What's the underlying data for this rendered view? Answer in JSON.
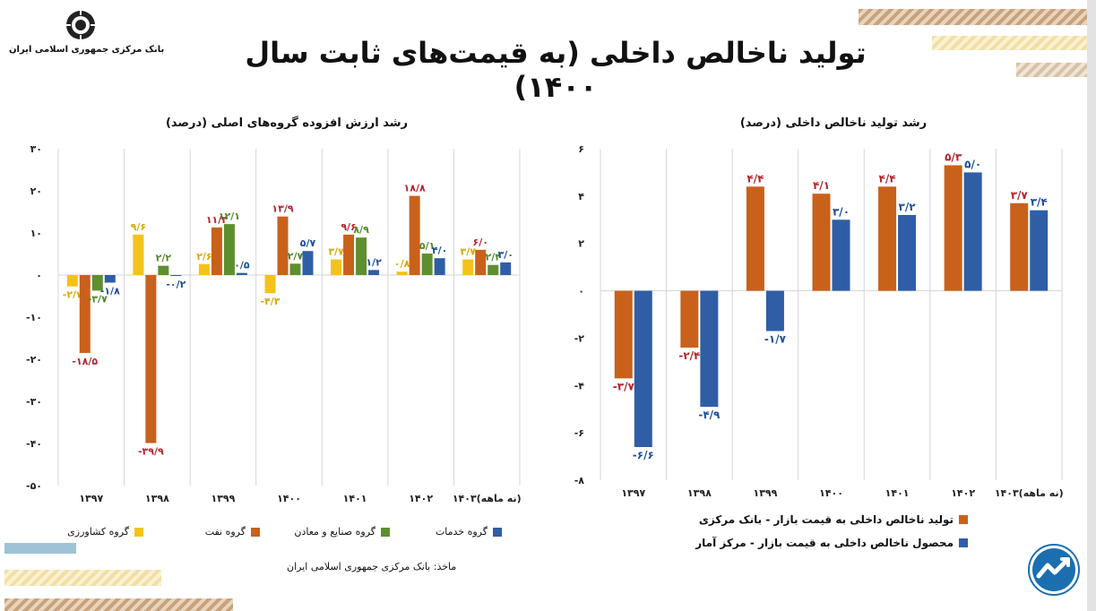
{
  "header": {
    "title": "تولید ناخالص داخلی (به قیمت‌های ثابت سال ۱۴۰۰)",
    "logo_text": "بانک مرکزی جمهوری اسلامی ایران"
  },
  "colors": {
    "yellow": "#F5C21B",
    "orange": "#C9611B",
    "green": "#5E8F2E",
    "blue": "#2F5EA6",
    "label_yellow": "#D8A800",
    "label_red": "#B3262E",
    "label_green": "#4F8A2A",
    "label_blue": "#1F4E9A",
    "grid": "#D5D5D5"
  },
  "chart_data": [
    {
      "type": "bar",
      "title": "رشد ارزش افزوده گروه‌های اصلی (درصد)",
      "categories": [
        "۱۳۹۷",
        "۱۳۹۸",
        "۱۳۹۹",
        "۱۴۰۰",
        "۱۴۰۱",
        "۱۴۰۲",
        "۱۴۰۳(نه ماهه)"
      ],
      "series": [
        {
          "name": "گروه کشاورزی",
          "color": "#F5C21B",
          "label_color": "#D8A800",
          "values": [
            -2.7,
            9.6,
            2.6,
            -4.3,
            3.7,
            0.8,
            3.7
          ],
          "labels": [
            "-۲/۷",
            "۹/۶",
            "۲/۶",
            "-۴/۳",
            "۳/۷",
            "۰/۸",
            "۳/۷"
          ]
        },
        {
          "name": "گروه نفت",
          "color": "#C9611B",
          "label_color": "#B3262E",
          "values": [
            -18.5,
            -39.9,
            11.3,
            13.9,
            9.6,
            18.8,
            6.0
          ],
          "labels": [
            "-۱۸/۵",
            "-۳۹/۹",
            "۱۱/۳",
            "۱۳/۹",
            "۹/۶",
            "۱۸/۸",
            "۶/۰"
          ]
        },
        {
          "name": "گروه صنایع و معادن",
          "color": "#5E8F2E",
          "label_color": "#4F8A2A",
          "values": [
            -3.7,
            2.2,
            12.1,
            2.7,
            8.9,
            5.1,
            2.4
          ],
          "labels": [
            "-۳/۷",
            "۲/۲",
            "۱۲/۱",
            "۲/۷",
            "۸/۹",
            "۵/۱",
            "۲/۴"
          ]
        },
        {
          "name": "گروه خدمات",
          "color": "#2F5EA6",
          "label_color": "#1F4E9A",
          "values": [
            -1.8,
            -0.2,
            0.5,
            5.7,
            1.2,
            4.0,
            3.0
          ],
          "labels": [
            "-۱/۸",
            "-۰/۲",
            "۰/۵",
            "۵/۷",
            "۱/۲",
            "۴/۰",
            "۳/۰"
          ]
        }
      ],
      "ylim": [
        -50,
        30
      ],
      "yticks": [
        30,
        20,
        10,
        0,
        -10,
        -20,
        -30,
        -40,
        -50
      ],
      "ytick_labels": [
        "۳۰",
        "۲۰",
        "۱۰",
        "۰",
        "-۱۰",
        "-۲۰",
        "-۳۰",
        "-۴۰",
        "-۵۰"
      ],
      "source": "ماخذ: بانک مرکزی جمهوری اسلامی ایران"
    },
    {
      "type": "bar",
      "title": "رشد تولید ناخالص داخلی (درصد)",
      "categories": [
        "۱۳۹۷",
        "۱۳۹۸",
        "۱۳۹۹",
        "۱۴۰۰",
        "۱۴۰۱",
        "۱۴۰۲",
        "۱۴۰۳(نه ماهه)"
      ],
      "series": [
        {
          "name": "تولید ناخالص داخلی به قیمت بازار - بانک مرکزی",
          "color": "#C9611B",
          "label_color": "#B3262E",
          "values": [
            -3.7,
            -2.4,
            4.4,
            4.1,
            4.4,
            5.3,
            3.7
          ],
          "labels": [
            "-۳/۷",
            "-۲/۴",
            "۴/۴",
            "۴/۱",
            "۴/۴",
            "۵/۳",
            "۳/۷"
          ]
        },
        {
          "name": "محصول ناخالص داخلی به قیمت بازار - مرکز آمار",
          "color": "#2F5EA6",
          "label_color": "#1F4E9A",
          "values": [
            -6.6,
            -4.9,
            -1.7,
            3.0,
            3.2,
            5.0,
            3.4
          ],
          "labels": [
            "-۶/۶",
            "-۴/۹",
            "-۱/۷",
            "۳/۰",
            "۳/۲",
            "۵/۰",
            "۳/۴"
          ]
        }
      ],
      "ylim": [
        -8,
        6
      ],
      "yticks": [
        6,
        4,
        2,
        0,
        -2,
        -4,
        -6,
        -8
      ],
      "ytick_labels": [
        "۶",
        "۴",
        "۲",
        "۰",
        "-۲",
        "-۴",
        "-۶",
        "-۸"
      ]
    }
  ]
}
